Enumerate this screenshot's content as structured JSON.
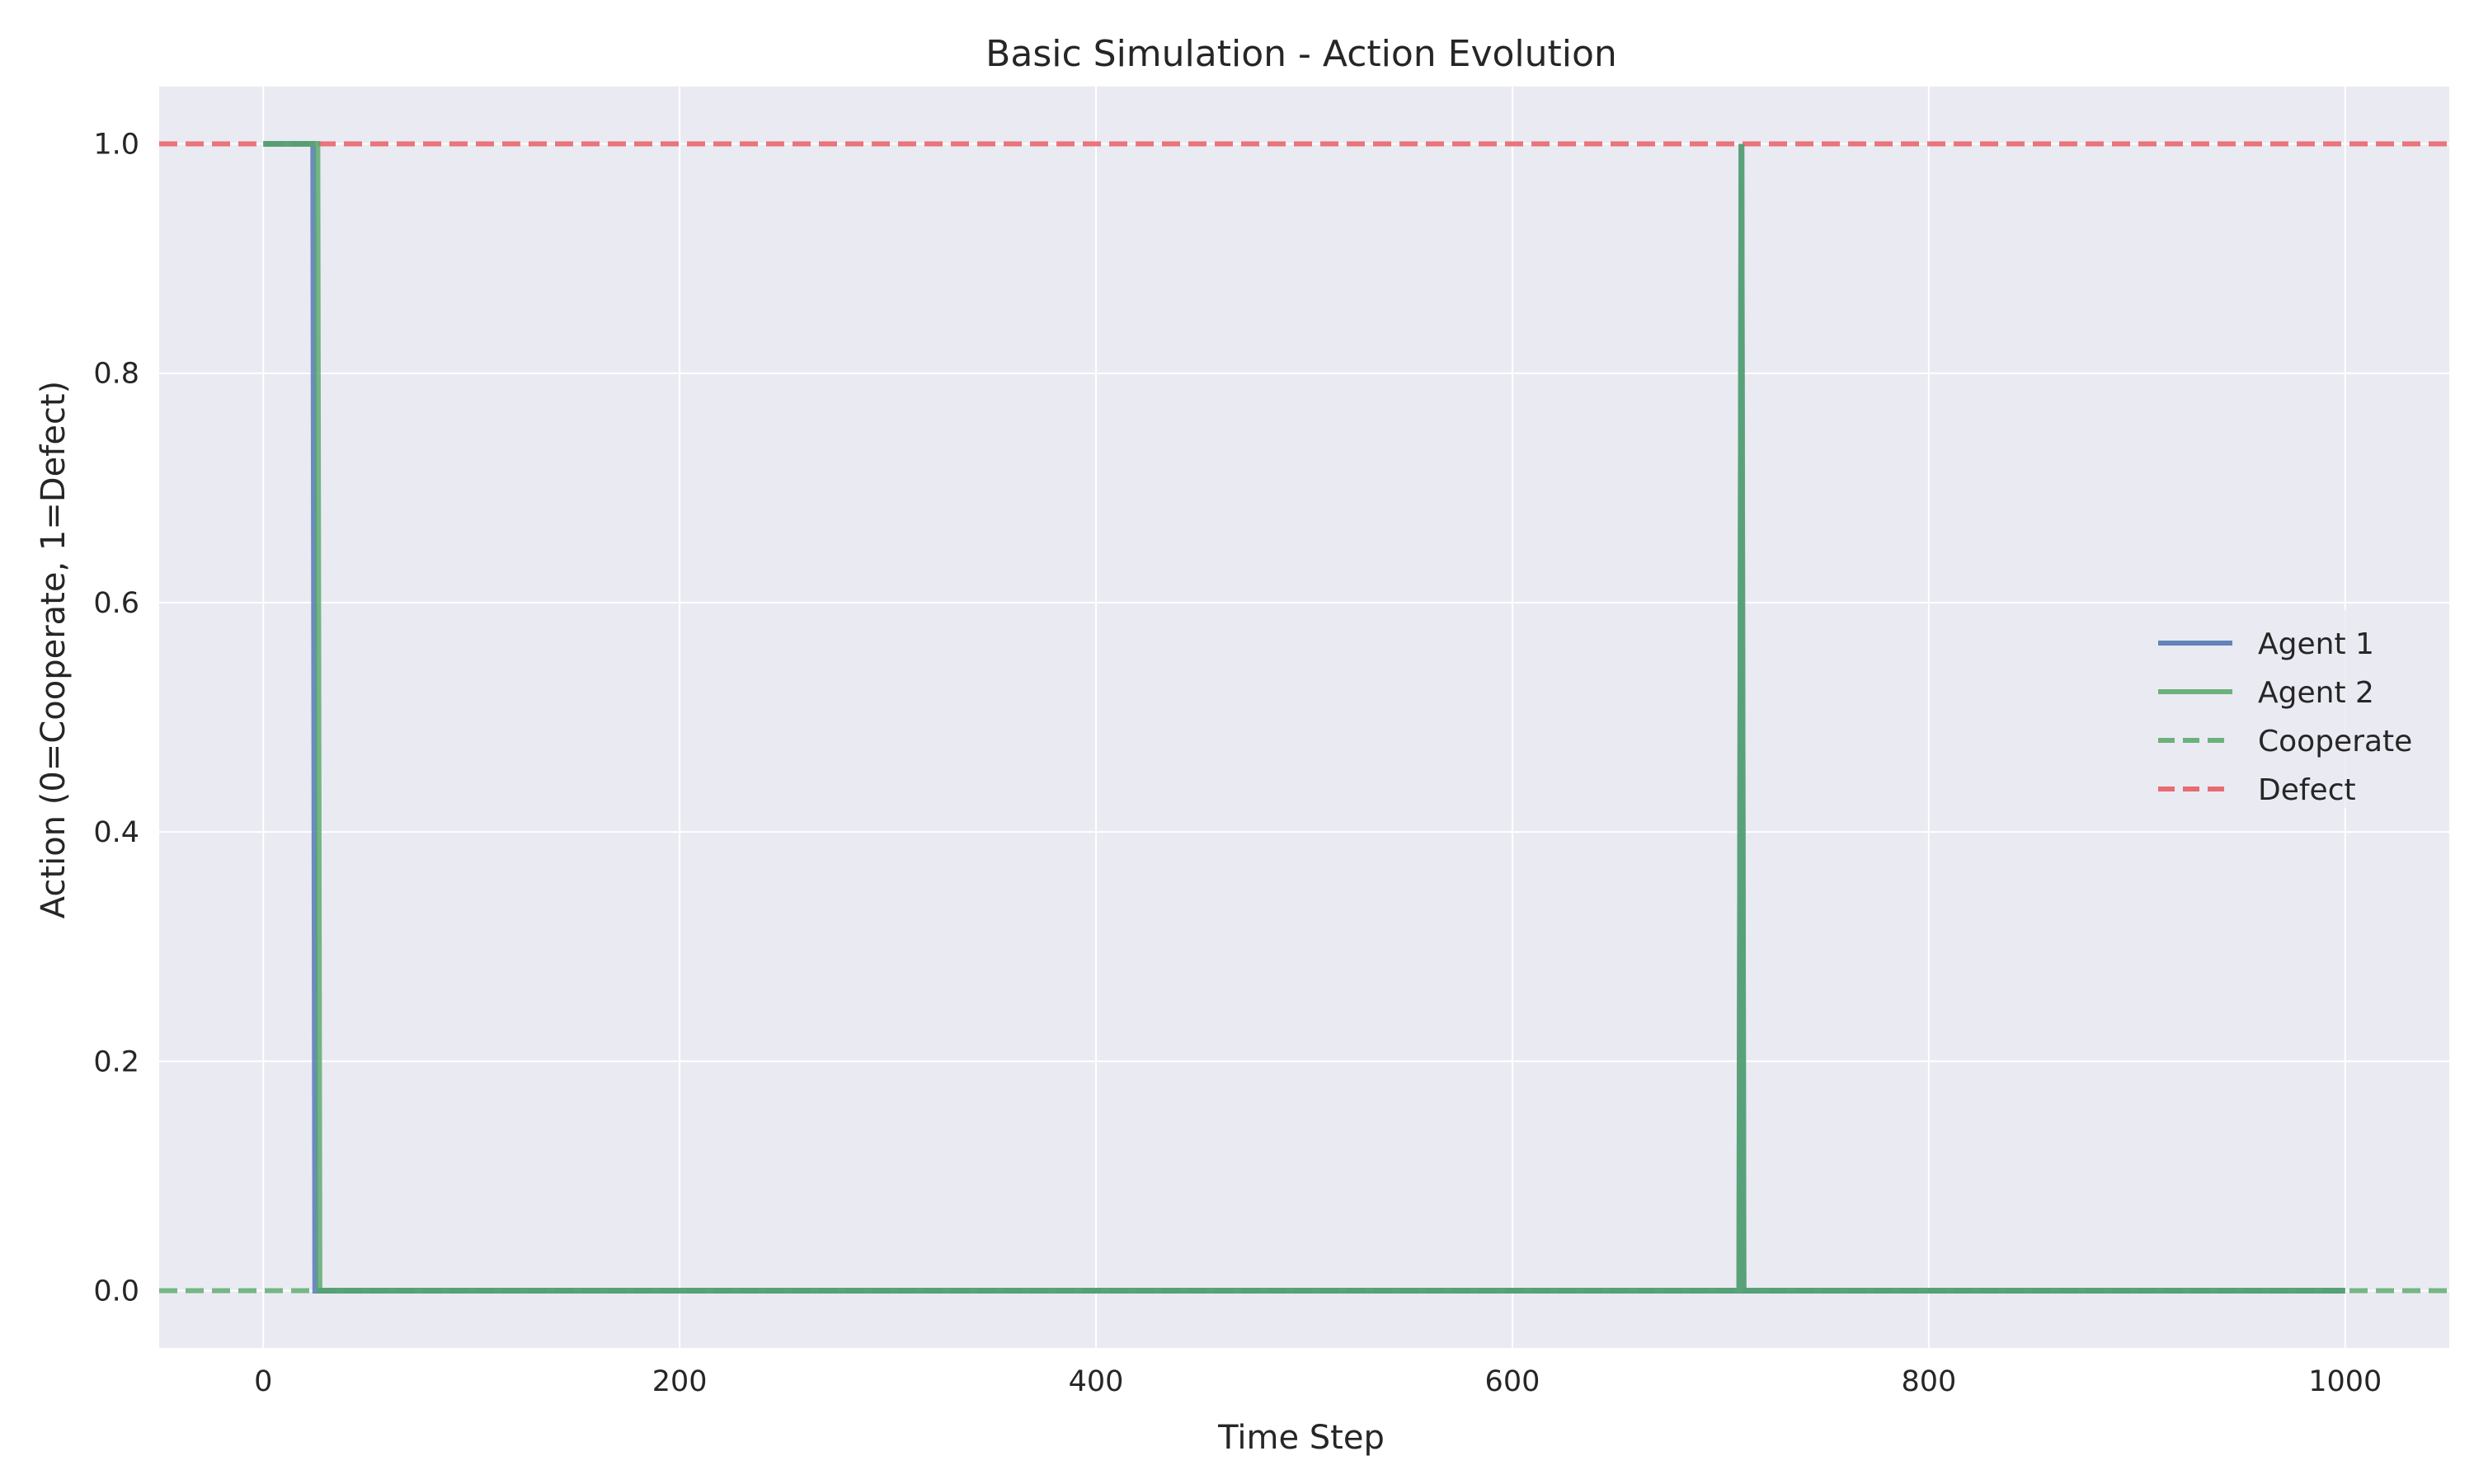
{
  "chart_data": {
    "type": "line",
    "title": "Basic Simulation - Action Evolution",
    "xlabel": "Time Step",
    "ylabel": "Action (0=Cooperate, 1=Defect)",
    "xlim": [
      -50,
      1050
    ],
    "ylim": [
      -0.05,
      1.05
    ],
    "xticks": [
      0,
      200,
      400,
      600,
      800,
      1000
    ],
    "yticks": [
      0.0,
      0.2,
      0.4,
      0.6,
      0.8,
      1.0
    ],
    "xtick_labels": [
      "0",
      "200",
      "400",
      "600",
      "800",
      "1000"
    ],
    "ytick_labels": [
      "0.0",
      "0.2",
      "0.4",
      "0.6",
      "0.8",
      "1.0"
    ],
    "grid": true,
    "legend_position": "center-right",
    "series": [
      {
        "name": "Agent 1",
        "color": "#4c72b0",
        "style": "solid",
        "x": [
          0,
          24,
          25,
          709,
          710,
          711,
          1000
        ],
        "y": [
          1,
          1,
          0,
          0,
          1,
          0,
          0
        ]
      },
      {
        "name": "Agent 2",
        "color": "#55a868",
        "style": "solid",
        "x": [
          0,
          26,
          27,
          709,
          710,
          711,
          1000
        ],
        "y": [
          1,
          1,
          0,
          0,
          1,
          0,
          0
        ]
      }
    ],
    "reference_lines": [
      {
        "name": "Cooperate",
        "y": 0,
        "color": "#55a868",
        "style": "dashed"
      },
      {
        "name": "Defect",
        "y": 1,
        "color": "#e8555a",
        "style": "dashed"
      }
    ]
  }
}
